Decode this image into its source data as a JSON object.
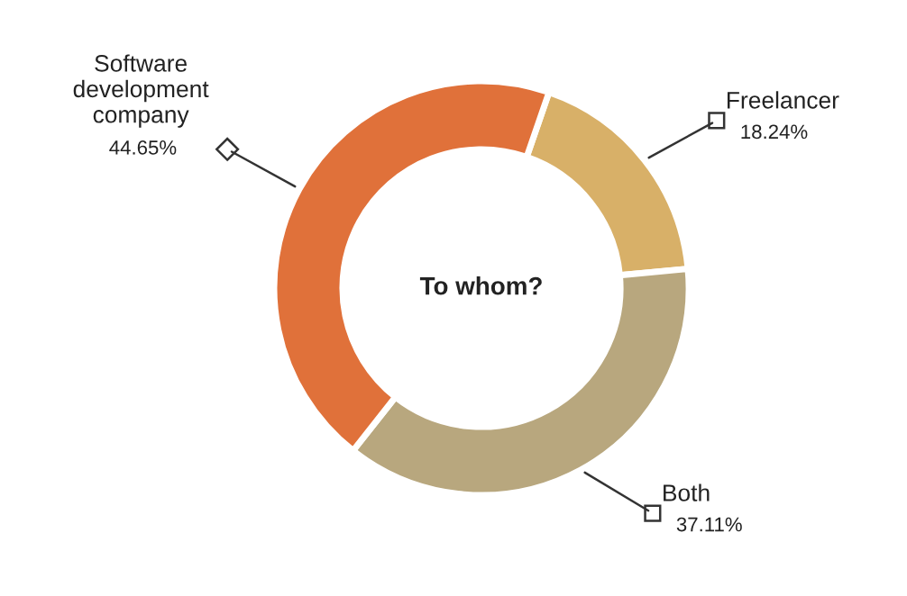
{
  "chart_data": {
    "type": "donut",
    "title": "To whom?",
    "categories": [
      "Freelancer",
      "Both",
      "Software\ndevelopment\ncompany"
    ],
    "values": [
      18.24,
      37.11,
      44.65
    ],
    "colors": [
      "#d8b068",
      "#b8a77e",
      "#e0713a"
    ],
    "value_labels": [
      "18.24%",
      "37.11%",
      "44.65%"
    ],
    "legend": false
  }
}
